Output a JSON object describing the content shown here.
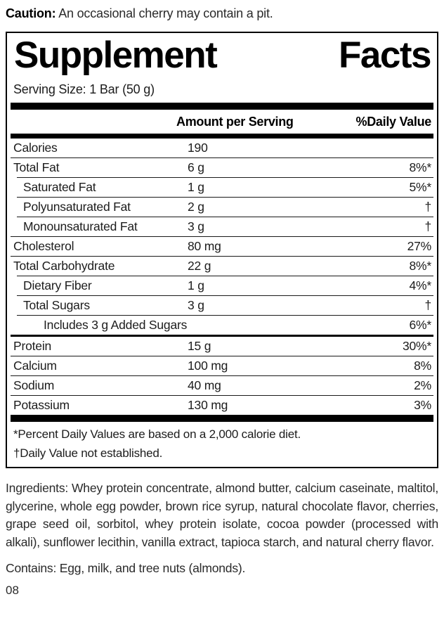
{
  "caution": {
    "label": "Caution:",
    "text": "An occasional cherry may contain a pit."
  },
  "supplement_facts": {
    "title_word1": "Supplement",
    "title_word2": "Facts",
    "serving_size": "Serving Size: 1 Bar (50 g)",
    "columns": {
      "amount": "Amount per Serving",
      "daily_value": "%Daily Value"
    },
    "rows": [
      {
        "name": "Calories",
        "amount": "190",
        "dv": "",
        "indent": 0,
        "rule": "none"
      },
      {
        "name": "Total Fat",
        "amount": "6 g",
        "dv": "8%*",
        "indent": 0,
        "rule": "hair"
      },
      {
        "name": "Saturated Fat",
        "amount": "1 g",
        "dv": "5%*",
        "indent": 1,
        "rule": "hair-indent"
      },
      {
        "name": "Polyunsaturated Fat",
        "amount": "2 g",
        "dv": "†",
        "indent": 1,
        "rule": "hair-indent"
      },
      {
        "name": "Monounsaturated Fat",
        "amount": "3 g",
        "dv": "†",
        "indent": 1,
        "rule": "hair-indent"
      },
      {
        "name": "Cholesterol",
        "amount": "80 mg",
        "dv": "27%",
        "indent": 0,
        "rule": "hair"
      },
      {
        "name": "Total Carbohydrate",
        "amount": "22 g",
        "dv": "8%*",
        "indent": 0,
        "rule": "hair"
      },
      {
        "name": "Dietary Fiber",
        "amount": "1 g",
        "dv": "4%*",
        "indent": 1,
        "rule": "hair-indent"
      },
      {
        "name": "Total Sugars",
        "amount": "3 g",
        "dv": "†",
        "indent": 1,
        "rule": "hair-indent"
      },
      {
        "name": "Includes 3 g Added Sugars",
        "amount": "",
        "dv": "6%*",
        "indent": 2,
        "rule": "hair-indent"
      },
      {
        "name": "Protein",
        "amount": "15 g",
        "dv": "30%*",
        "indent": 0,
        "rule": "medium"
      },
      {
        "name": "Calcium",
        "amount": "100 mg",
        "dv": "8%",
        "indent": 0,
        "rule": "hair"
      },
      {
        "name": "Sodium",
        "amount": "40 mg",
        "dv": "2%",
        "indent": 0,
        "rule": "hair"
      },
      {
        "name": "Potassium",
        "amount": "130 mg",
        "dv": "3%",
        "indent": 0,
        "rule": "hair"
      }
    ],
    "footnotes": [
      "*Percent Daily Values are based on a 2,000 calorie diet.",
      "†Daily Value not established."
    ]
  },
  "ingredients": "Ingredients: Whey protein concentrate, almond butter, calcium caseinate, maltitol, glycerine, whole egg powder, brown rice syrup, natural chocolate flavor, cherries, grape seed oil, sorbitol, whey protein isolate, cocoa powder (processed with alkali), sunflower lecithin, vanilla extract, tapioca starch, and natural cherry flavor.",
  "contains": "Contains: Egg, milk, and tree nuts (almonds).",
  "page_number": "08",
  "colors": {
    "text": "#1c1c1c",
    "rule": "#000000",
    "background": "#ffffff"
  }
}
